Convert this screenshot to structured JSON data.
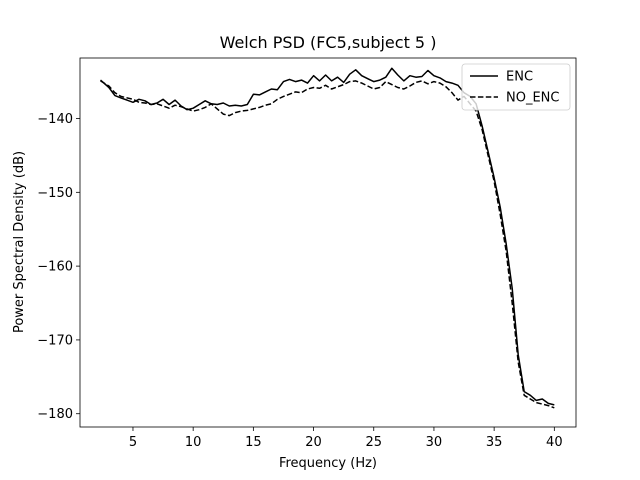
{
  "chart_data": {
    "type": "line",
    "title": "Welch PSD (FC5,subject 5 )",
    "xlabel": "Frequency (Hz)",
    "ylabel": "Power Spectral Density (dB)",
    "xlim": [
      0.6,
      41.8
    ],
    "ylim": [
      -181.8,
      -131.8
    ],
    "xticks": [
      5,
      10,
      15,
      20,
      25,
      30,
      35,
      40
    ],
    "yticks": [
      -140,
      -150,
      -160,
      -170,
      -180
    ],
    "ytick_labels": [
      "−140",
      "−150",
      "−160",
      "−170",
      "−180"
    ],
    "grid": false,
    "legend_position": "top-right",
    "series": [
      {
        "name": "ENC",
        "style": "solid",
        "color": "#000000",
        "x": [
          2.3,
          3.0,
          3.5,
          4.0,
          5.0,
          5.5,
          6.0,
          6.5,
          7.0,
          7.5,
          8.0,
          8.5,
          9.0,
          9.5,
          10.0,
          10.5,
          11.0,
          11.5,
          12.0,
          12.5,
          13.0,
          13.5,
          14.0,
          14.5,
          15.0,
          15.5,
          16.0,
          16.5,
          17.0,
          17.5,
          18.0,
          18.5,
          19.0,
          19.5,
          20.0,
          20.5,
          21.0,
          21.5,
          22.0,
          22.5,
          23.0,
          23.5,
          24.0,
          24.5,
          25.0,
          25.5,
          26.0,
          26.5,
          27.0,
          27.5,
          28.0,
          28.5,
          29.0,
          29.5,
          30.0,
          30.5,
          31.0,
          31.5,
          32.0,
          32.5,
          33.0,
          33.5,
          34.0,
          34.5,
          35.0,
          35.5,
          36.0,
          36.5,
          37.0,
          37.5,
          38.0,
          38.5,
          39.0,
          39.5,
          40.0
        ],
        "y": [
          -134.8,
          -135.8,
          -136.9,
          -137.2,
          -137.8,
          -137.4,
          -137.6,
          -138.1,
          -137.9,
          -137.4,
          -138.1,
          -137.5,
          -138.3,
          -138.8,
          -138.6,
          -138.1,
          -137.6,
          -138.0,
          -138.1,
          -137.9,
          -138.3,
          -138.2,
          -138.3,
          -138.1,
          -136.7,
          -136.8,
          -136.4,
          -136.0,
          -136.1,
          -135.0,
          -134.7,
          -135.0,
          -134.8,
          -135.2,
          -134.2,
          -134.9,
          -134.1,
          -134.9,
          -134.4,
          -135.1,
          -134.0,
          -133.4,
          -134.2,
          -134.6,
          -135.0,
          -134.8,
          -134.4,
          -133.2,
          -134.1,
          -134.9,
          -134.2,
          -134.4,
          -134.3,
          -133.5,
          -134.2,
          -134.5,
          -135.0,
          -135.2,
          -135.5,
          -136.5,
          -137.0,
          -138.0,
          -141.0,
          -144.5,
          -148.0,
          -152.0,
          -157.0,
          -163.0,
          -172.0,
          -177.0,
          -177.5,
          -178.2,
          -178.0,
          -178.6,
          -178.8
        ]
      },
      {
        "name": "NO_ENC",
        "style": "dashed",
        "color": "#000000",
        "x": [
          2.3,
          3.0,
          3.5,
          4.0,
          5.0,
          5.5,
          6.0,
          6.5,
          7.0,
          7.5,
          8.0,
          8.5,
          9.0,
          9.5,
          10.0,
          10.5,
          11.0,
          11.5,
          12.0,
          12.5,
          13.0,
          13.5,
          14.0,
          14.5,
          15.0,
          15.5,
          16.0,
          16.5,
          17.0,
          17.5,
          18.0,
          18.5,
          19.0,
          19.5,
          20.0,
          20.5,
          21.0,
          21.5,
          22.0,
          22.5,
          23.0,
          23.5,
          24.0,
          24.5,
          25.0,
          25.5,
          26.0,
          26.5,
          27.0,
          27.5,
          28.0,
          28.5,
          29.0,
          29.5,
          30.0,
          30.5,
          31.0,
          31.5,
          32.0,
          32.5,
          33.0,
          33.5,
          34.0,
          34.5,
          35.0,
          35.5,
          36.0,
          36.5,
          37.0,
          37.5,
          38.0,
          38.5,
          39.0,
          39.5,
          40.0
        ],
        "y": [
          -134.9,
          -135.6,
          -136.5,
          -137.0,
          -137.4,
          -137.8,
          -137.9,
          -138.1,
          -138.0,
          -138.3,
          -138.6,
          -138.2,
          -138.4,
          -138.7,
          -139.0,
          -138.8,
          -138.5,
          -138.0,
          -138.7,
          -139.4,
          -139.6,
          -139.2,
          -139.0,
          -138.9,
          -138.7,
          -138.5,
          -138.2,
          -138.0,
          -137.4,
          -137.0,
          -136.7,
          -136.4,
          -136.5,
          -136.0,
          -135.8,
          -135.9,
          -135.5,
          -136.0,
          -135.7,
          -135.4,
          -135.0,
          -134.9,
          -135.2,
          -135.6,
          -136.0,
          -135.8,
          -135.0,
          -135.4,
          -135.8,
          -136.0,
          -135.6,
          -135.1,
          -134.9,
          -135.3,
          -135.0,
          -135.2,
          -135.7,
          -136.5,
          -137.5,
          -137.0,
          -138.0,
          -139.0,
          -141.5,
          -145.0,
          -148.5,
          -153.0,
          -158.0,
          -165.0,
          -173.0,
          -177.5,
          -178.0,
          -178.5,
          -178.7,
          -178.9,
          -179.2
        ]
      }
    ]
  }
}
